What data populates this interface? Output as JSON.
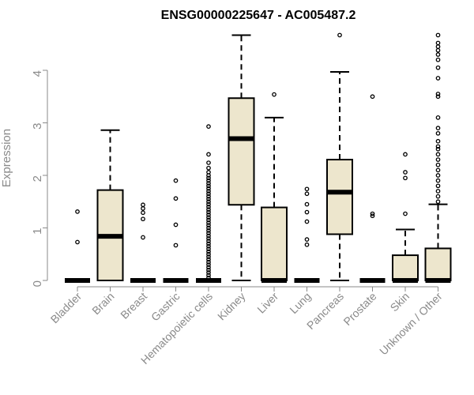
{
  "chart_data": {
    "type": "box",
    "title": "ENSG00000225647 - AC005487.2",
    "ylabel": "Expression",
    "xlabel": "",
    "ylim": [
      0,
      4.7
    ],
    "yticks": [
      0,
      1,
      2,
      3,
      4
    ],
    "box_fill": "#ede6cd",
    "box_stroke": "#000000",
    "axis_color": "#8a8a8a",
    "categories": [
      "Bladder",
      "Brain",
      "Breast",
      "Gastric",
      "Hematopoietic cells",
      "Kidney",
      "Liver",
      "Lung",
      "Pancreas",
      "Prostate",
      "Skin",
      "Unknown / Other"
    ],
    "boxes": [
      {
        "q1": 0,
        "median": 0,
        "q3": 0,
        "whisker_low": 0,
        "whisker_high": 0,
        "outliers": [
          0.73,
          1.31
        ]
      },
      {
        "q1": 0,
        "median": 0.84,
        "q3": 1.72,
        "whisker_low": 0,
        "whisker_high": 2.86,
        "outliers": []
      },
      {
        "q1": 0,
        "median": 0,
        "q3": 0,
        "whisker_low": 0,
        "whisker_high": 0,
        "outliers": [
          0.82,
          1.17,
          1.29,
          1.37,
          1.44
        ]
      },
      {
        "q1": 0,
        "median": 0,
        "q3": 0,
        "whisker_low": 0,
        "whisker_high": 0,
        "outliers": [
          0.67,
          1.06,
          1.56,
          1.9
        ]
      },
      {
        "q1": 0,
        "median": 0,
        "q3": 0,
        "whisker_low": 0,
        "whisker_high": 0,
        "outliers": [
          0.05,
          0.1,
          0.15,
          0.2,
          0.25,
          0.3,
          0.35,
          0.4,
          0.45,
          0.5,
          0.55,
          0.6,
          0.65,
          0.7,
          0.75,
          0.8,
          0.85,
          0.9,
          0.95,
          1.0,
          1.05,
          1.1,
          1.15,
          1.2,
          1.25,
          1.3,
          1.35,
          1.4,
          1.45,
          1.5,
          1.55,
          1.6,
          1.65,
          1.7,
          1.75,
          1.8,
          1.85,
          1.9,
          1.95,
          2.0,
          2.06,
          2.14,
          2.24,
          2.4,
          2.93
        ]
      },
      {
        "q1": 1.44,
        "median": 2.7,
        "q3": 3.47,
        "whisker_low": 0,
        "whisker_high": 4.67,
        "outliers": []
      },
      {
        "q1": 0,
        "median": 0,
        "q3": 1.39,
        "whisker_low": 0,
        "whisker_high": 3.1,
        "outliers": [
          3.54
        ]
      },
      {
        "q1": 0,
        "median": 0,
        "q3": 0,
        "whisker_low": 0,
        "whisker_high": 0,
        "outliers": [
          0.68,
          0.78,
          1.12,
          1.3,
          1.45,
          1.65,
          1.74
        ]
      },
      {
        "q1": 0.88,
        "median": 1.68,
        "q3": 2.3,
        "whisker_low": 0,
        "whisker_high": 3.97,
        "outliers": [
          4.67
        ]
      },
      {
        "q1": 0,
        "median": 0,
        "q3": 0,
        "whisker_low": 0,
        "whisker_high": 0,
        "outliers": [
          1.23,
          1.27,
          3.5
        ]
      },
      {
        "q1": 0,
        "median": 0,
        "q3": 0.48,
        "whisker_low": 0,
        "whisker_high": 0.97,
        "outliers": [
          1.27,
          1.95,
          2.06,
          2.4
        ]
      },
      {
        "q1": 0,
        "median": 0,
        "q3": 0.61,
        "whisker_low": 0,
        "whisker_high": 1.45,
        "outliers": [
          1.5,
          1.6,
          1.7,
          1.8,
          1.9,
          2.0,
          2.1,
          2.2,
          2.3,
          2.4,
          2.5,
          2.55,
          2.65,
          2.8,
          2.9,
          3.1,
          3.5,
          3.55,
          3.85,
          4.05,
          4.2,
          4.3,
          4.38,
          4.45,
          4.52,
          4.67
        ]
      }
    ]
  }
}
